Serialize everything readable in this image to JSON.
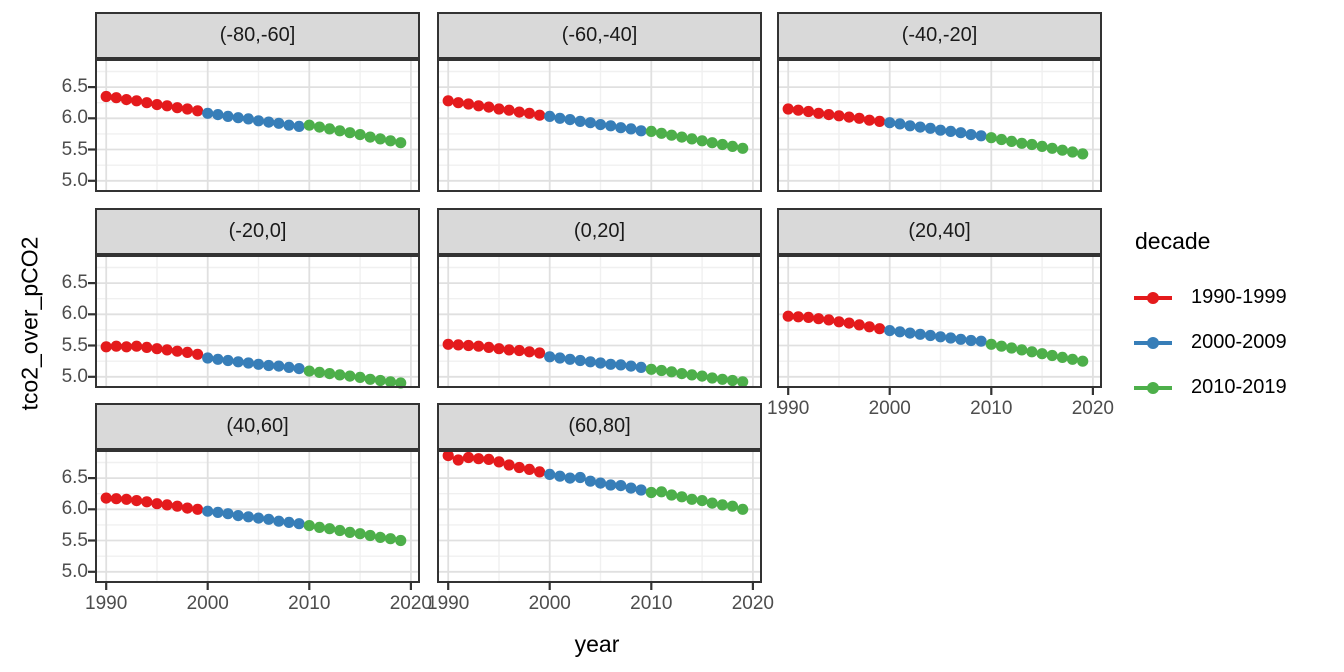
{
  "chart_data": {
    "type": "scatter",
    "title": "",
    "xlabel": "year",
    "ylabel": "tco2_over_pCO2",
    "grid": "on",
    "legend_position": "right",
    "xlim": [
      1988.9,
      2020.9
    ],
    "ylim": [
      4.82,
      6.95
    ],
    "x_ticks": [
      1990,
      2000,
      2010,
      2020
    ],
    "y_ticks": [
      6.5,
      6.0,
      5.5,
      5.0
    ],
    "x_minor": [
      1995,
      2005,
      2015
    ],
    "y_minor": [
      6.75,
      6.25,
      5.75,
      5.25
    ],
    "years": [
      1990,
      1991,
      1992,
      1993,
      1994,
      1995,
      1996,
      1997,
      1998,
      1999,
      2000,
      2001,
      2002,
      2003,
      2004,
      2005,
      2006,
      2007,
      2008,
      2009,
      2010,
      2011,
      2012,
      2013,
      2014,
      2015,
      2016,
      2017,
      2018,
      2019
    ],
    "legend": {
      "title": "decade",
      "items": [
        {
          "label": "1990-1999",
          "color": "#E41A1C",
          "start": 1990,
          "end": 1999
        },
        {
          "label": "2000-2009",
          "color": "#377EB8",
          "start": 2000,
          "end": 2009
        },
        {
          "label": "2010-2019",
          "color": "#4DAF4A",
          "start": 2010,
          "end": 2019
        }
      ]
    },
    "facets": [
      {
        "label": "(-80,-60]",
        "values": [
          6.35,
          6.33,
          6.3,
          6.28,
          6.25,
          6.22,
          6.2,
          6.17,
          6.15,
          6.12,
          6.08,
          6.06,
          6.03,
          6.01,
          5.99,
          5.96,
          5.94,
          5.92,
          5.89,
          5.87,
          5.89,
          5.86,
          5.83,
          5.8,
          5.77,
          5.74,
          5.7,
          5.67,
          5.64,
          5.61
        ]
      },
      {
        "label": "(-60,-40]",
        "values": [
          6.28,
          6.25,
          6.23,
          6.2,
          6.18,
          6.15,
          6.13,
          6.1,
          6.08,
          6.05,
          6.03,
          6.0,
          5.98,
          5.95,
          5.93,
          5.9,
          5.88,
          5.85,
          5.83,
          5.8,
          5.79,
          5.76,
          5.73,
          5.7,
          5.67,
          5.64,
          5.61,
          5.58,
          5.55,
          5.52
        ]
      },
      {
        "label": "(-40,-20]",
        "values": [
          6.15,
          6.13,
          6.11,
          6.08,
          6.06,
          6.04,
          6.02,
          6.0,
          5.97,
          5.95,
          5.93,
          5.91,
          5.88,
          5.86,
          5.84,
          5.81,
          5.79,
          5.77,
          5.74,
          5.72,
          5.69,
          5.66,
          5.63,
          5.6,
          5.58,
          5.55,
          5.52,
          5.49,
          5.46,
          5.43
        ]
      },
      {
        "label": "(-20,0]",
        "values": [
          5.48,
          5.49,
          5.48,
          5.49,
          5.47,
          5.45,
          5.43,
          5.41,
          5.39,
          5.36,
          5.3,
          5.28,
          5.26,
          5.24,
          5.22,
          5.2,
          5.18,
          5.17,
          5.15,
          5.13,
          5.09,
          5.07,
          5.05,
          5.03,
          5.01,
          4.99,
          4.96,
          4.94,
          4.92,
          4.9
        ]
      },
      {
        "label": "(0,20]",
        "values": [
          5.52,
          5.51,
          5.5,
          5.49,
          5.47,
          5.45,
          5.43,
          5.42,
          5.4,
          5.38,
          5.32,
          5.3,
          5.28,
          5.26,
          5.24,
          5.22,
          5.2,
          5.19,
          5.17,
          5.15,
          5.12,
          5.1,
          5.08,
          5.05,
          5.03,
          5.01,
          4.98,
          4.96,
          4.94,
          4.92
        ]
      },
      {
        "label": "(20,40]",
        "values": [
          5.97,
          5.96,
          5.95,
          5.93,
          5.91,
          5.88,
          5.86,
          5.83,
          5.8,
          5.77,
          5.74,
          5.72,
          5.7,
          5.68,
          5.66,
          5.64,
          5.62,
          5.6,
          5.58,
          5.57,
          5.52,
          5.49,
          5.46,
          5.43,
          5.4,
          5.37,
          5.34,
          5.31,
          5.28,
          5.25
        ]
      },
      {
        "label": "(40,60]",
        "values": [
          6.18,
          6.17,
          6.16,
          6.14,
          6.12,
          6.09,
          6.07,
          6.05,
          6.02,
          6.0,
          5.97,
          5.95,
          5.93,
          5.9,
          5.88,
          5.86,
          5.84,
          5.81,
          5.79,
          5.77,
          5.74,
          5.71,
          5.69,
          5.66,
          5.63,
          5.61,
          5.58,
          5.55,
          5.53,
          5.5
        ]
      },
      {
        "label": "(60,80]",
        "values": [
          6.86,
          6.79,
          6.83,
          6.81,
          6.8,
          6.76,
          6.71,
          6.67,
          6.64,
          6.6,
          6.56,
          6.53,
          6.5,
          6.51,
          6.45,
          6.42,
          6.39,
          6.38,
          6.34,
          6.31,
          6.27,
          6.28,
          6.23,
          6.2,
          6.16,
          6.14,
          6.1,
          6.07,
          6.05,
          6.0
        ]
      }
    ],
    "style": {
      "strip_bg": "#D9D9D9",
      "panel_border": "#333333",
      "grid_major": "#E0E0E0",
      "grid_minor": "#F0F0F0",
      "tick_label_color": "#4D4D4D"
    }
  }
}
